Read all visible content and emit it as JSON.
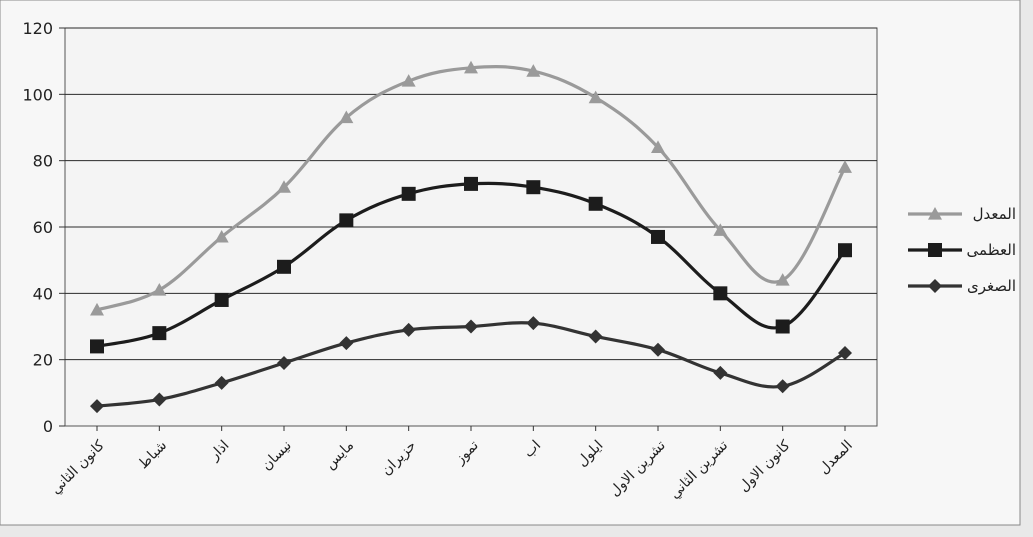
{
  "chart_data": {
    "type": "line",
    "categories": [
      "كانون الثاني",
      "شباط",
      "اذار",
      "نيسان",
      "مايس",
      "حزيران",
      "تموز",
      "اب",
      "ايلول",
      "تشرين الاول",
      "تشرين الثاني",
      "كانون الاول",
      "المعدل"
    ],
    "series": [
      {
        "name": "المعدل",
        "values": [
          35,
          41,
          57,
          72,
          93,
          104,
          108,
          107,
          99,
          84,
          59,
          44,
          78
        ],
        "color": "#9a9a9a",
        "marker": "triangle"
      },
      {
        "name": "العظمى",
        "values": [
          24,
          28,
          38,
          48,
          62,
          70,
          73,
          72,
          67,
          57,
          40,
          30,
          53
        ],
        "color": "#1c1c1c",
        "marker": "square"
      },
      {
        "name": "الصغرى",
        "values": [
          6,
          8,
          13,
          19,
          25,
          29,
          30,
          31,
          27,
          23,
          16,
          12,
          22
        ],
        "color": "#333333",
        "marker": "diamond"
      }
    ],
    "yticks": [
      0,
      20,
      40,
      60,
      80,
      100,
      120
    ],
    "ylim": [
      0,
      120
    ],
    "grid": true,
    "legend": "right",
    "title": "",
    "xlabel": "",
    "ylabel": ""
  }
}
